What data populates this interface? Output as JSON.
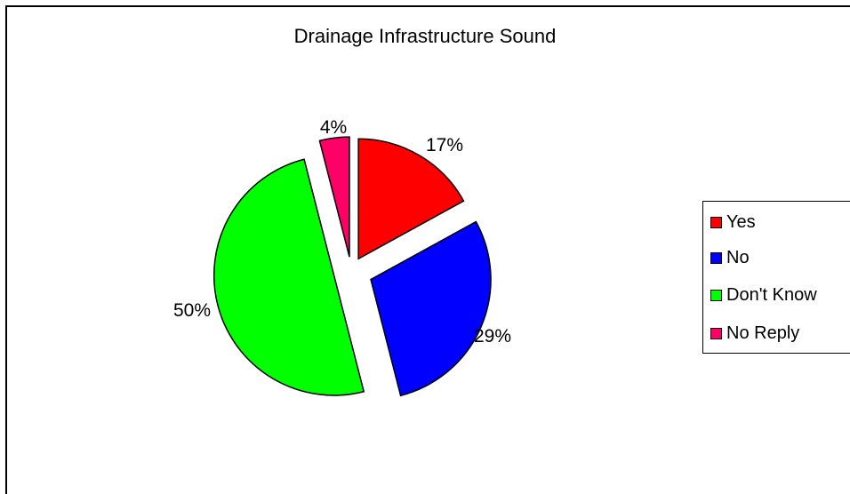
{
  "chart_data": {
    "type": "pie",
    "title": "Drainage Infrastructure Sound",
    "slices": [
      {
        "name": "Yes",
        "value": 17,
        "label": "17%",
        "color": "#ff0000"
      },
      {
        "name": "No",
        "value": 29,
        "label": "29%",
        "color": "#0000ff"
      },
      {
        "name": "Don't Know",
        "value": 50,
        "label": "50%",
        "color": "#00ff00"
      },
      {
        "name": "No Reply",
        "value": 4,
        "label": "4%",
        "color": "#ff0066"
      }
    ],
    "exploded": true,
    "legend": {
      "position": "right"
    }
  }
}
